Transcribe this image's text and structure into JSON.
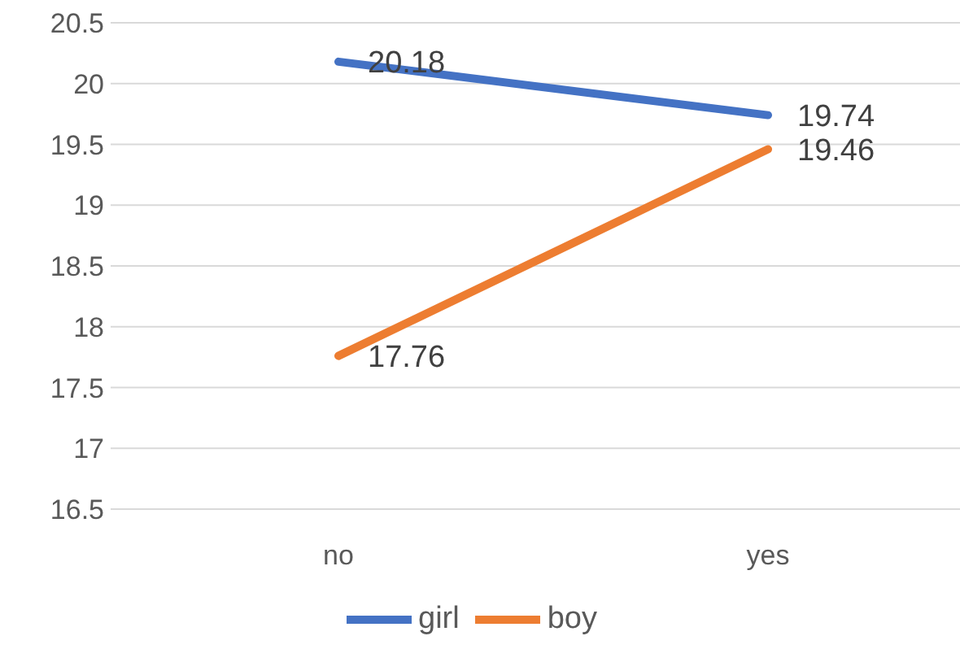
{
  "chart_data": {
    "type": "line",
    "categories": [
      "no",
      "yes"
    ],
    "series": [
      {
        "name": "girl",
        "color": "#4472c4",
        "values": [
          20.18,
          19.74
        ]
      },
      {
        "name": "boy",
        "color": "#ed7d31",
        "values": [
          17.76,
          19.46
        ]
      }
    ],
    "ylim": [
      16.5,
      20.5
    ],
    "yticks": [
      16.5,
      17,
      17.5,
      18,
      18.5,
      19,
      19.5,
      20,
      20.5
    ],
    "grid": "y",
    "legend": "bottom",
    "marker": "none",
    "line_style": "solid",
    "data_labels": true
  }
}
